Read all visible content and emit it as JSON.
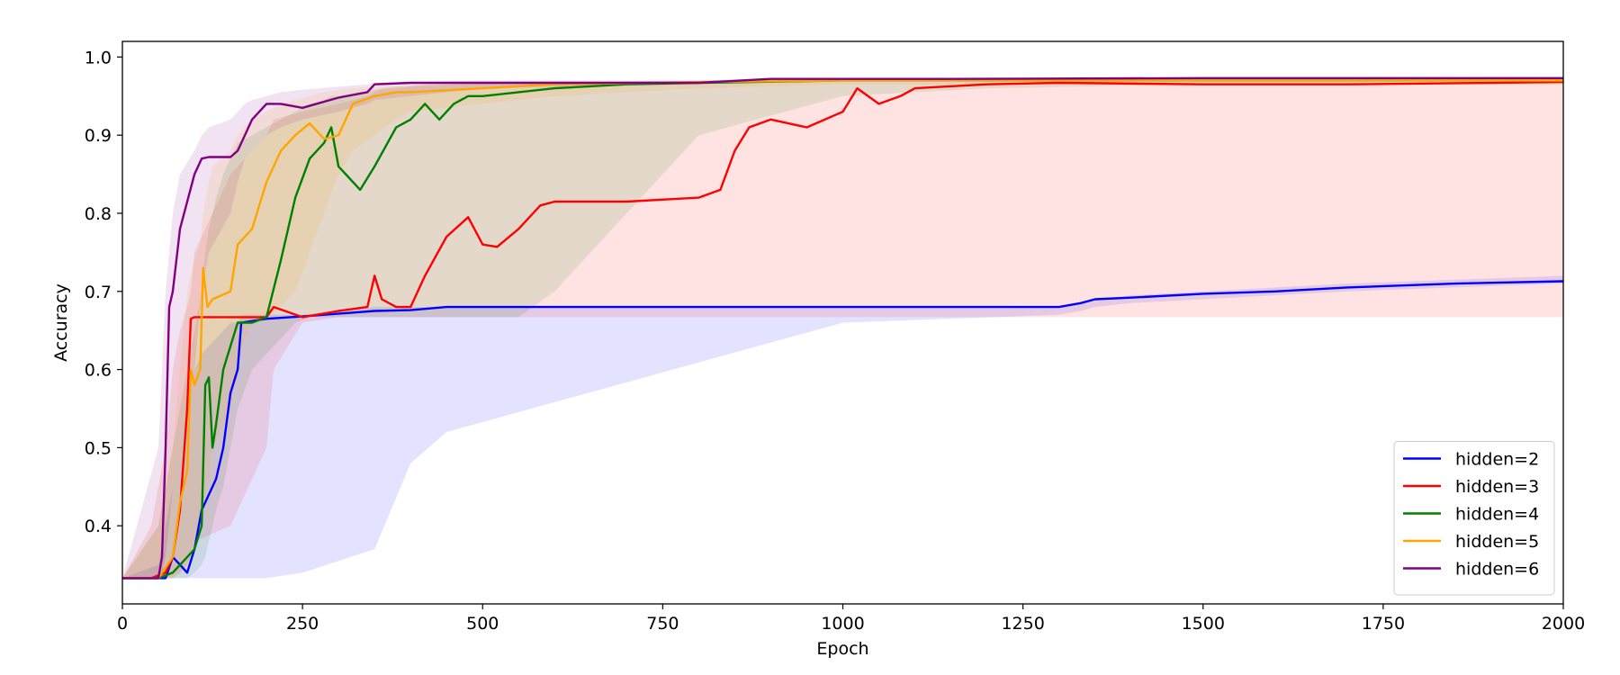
{
  "chart_data": {
    "type": "line",
    "title": "",
    "xlabel": "Epoch",
    "ylabel": "Accuracy",
    "xlim": [
      0,
      2000
    ],
    "ylim": [
      0.3,
      1.02
    ],
    "xticks": [
      0,
      250,
      500,
      750,
      1000,
      1250,
      1500,
      1750,
      2000
    ],
    "yticks": [
      0.4,
      0.5,
      0.6,
      0.7,
      0.8,
      0.9,
      1.0
    ],
    "xtick_labels": [
      "0",
      "250",
      "500",
      "750",
      "1000",
      "1250",
      "1500",
      "1750",
      "2000"
    ],
    "ytick_labels": [
      "0.4",
      "0.5",
      "0.6",
      "0.7",
      "0.8",
      "0.9",
      "1.0"
    ],
    "grid": false,
    "legend_position": "lower-right",
    "series": [
      {
        "name": "hidden=2",
        "color": "#0000ff",
        "x": [
          0,
          50,
          60,
          70,
          80,
          90,
          100,
          110,
          120,
          130,
          140,
          150,
          160,
          165,
          200,
          250,
          350,
          400,
          450,
          1000,
          1300,
          1330,
          1350,
          1400,
          1500,
          1600,
          1700,
          1850,
          2000
        ],
        "y": [
          0.333,
          0.333,
          0.333,
          0.36,
          0.35,
          0.34,
          0.37,
          0.42,
          0.44,
          0.46,
          0.5,
          0.57,
          0.6,
          0.66,
          0.665,
          0.668,
          0.675,
          0.676,
          0.68,
          0.68,
          0.68,
          0.685,
          0.69,
          0.692,
          0.697,
          0.7,
          0.705,
          0.71,
          0.713
        ],
        "band_upper": [
          0.333,
          0.35,
          0.4,
          0.45,
          0.5,
          0.55,
          0.6,
          0.62,
          0.63,
          0.64,
          0.65,
          0.66,
          0.66,
          0.67,
          0.67,
          0.67,
          0.68,
          0.68,
          0.68,
          0.68,
          0.68,
          0.685,
          0.69,
          0.695,
          0.7,
          0.705,
          0.71,
          0.715,
          0.72
        ],
        "band_lower": [
          0.333,
          0.333,
          0.333,
          0.333,
          0.333,
          0.333,
          0.333,
          0.333,
          0.333,
          0.333,
          0.333,
          0.333,
          0.333,
          0.333,
          0.333,
          0.34,
          0.37,
          0.48,
          0.52,
          0.66,
          0.67,
          0.675,
          0.68,
          0.685,
          0.69,
          0.695,
          0.7,
          0.705,
          0.71
        ]
      },
      {
        "name": "hidden=3",
        "color": "#ff0000",
        "x": [
          0,
          40,
          60,
          70,
          80,
          90,
          95,
          100,
          150,
          200,
          210,
          250,
          300,
          340,
          350,
          360,
          380,
          400,
          420,
          450,
          480,
          500,
          520,
          550,
          580,
          600,
          700,
          800,
          830,
          850,
          870,
          900,
          950,
          1000,
          1020,
          1050,
          1080,
          1100,
          1200,
          1300,
          1500,
          1700,
          2000
        ],
        "y": [
          0.333,
          0.333,
          0.34,
          0.36,
          0.42,
          0.55,
          0.665,
          0.667,
          0.667,
          0.667,
          0.68,
          0.667,
          0.675,
          0.68,
          0.72,
          0.69,
          0.68,
          0.68,
          0.72,
          0.77,
          0.795,
          0.76,
          0.757,
          0.78,
          0.81,
          0.815,
          0.815,
          0.82,
          0.83,
          0.88,
          0.91,
          0.92,
          0.91,
          0.93,
          0.96,
          0.94,
          0.95,
          0.96,
          0.965,
          0.967,
          0.965,
          0.965,
          0.968
        ],
        "band_upper": [
          0.333,
          0.4,
          0.5,
          0.6,
          0.65,
          0.68,
          0.7,
          0.75,
          0.85,
          0.9,
          0.92,
          0.93,
          0.94,
          0.95,
          0.955,
          0.96,
          0.962,
          0.963,
          0.965,
          0.966,
          0.967,
          0.967,
          0.967,
          0.967,
          0.967,
          0.967,
          0.968,
          0.968,
          0.968,
          0.968,
          0.968,
          0.968,
          0.968,
          0.968,
          0.968,
          0.968,
          0.968,
          0.968,
          0.968,
          0.968,
          0.968,
          0.968,
          0.968
        ],
        "band_lower": [
          0.333,
          0.333,
          0.333,
          0.333,
          0.34,
          0.35,
          0.36,
          0.38,
          0.4,
          0.5,
          0.6,
          0.66,
          0.667,
          0.667,
          0.667,
          0.667,
          0.667,
          0.667,
          0.667,
          0.667,
          0.667,
          0.667,
          0.667,
          0.667,
          0.667,
          0.667,
          0.667,
          0.667,
          0.667,
          0.667,
          0.667,
          0.667,
          0.667,
          0.667,
          0.667,
          0.667,
          0.667,
          0.667,
          0.667,
          0.667,
          0.667,
          0.667,
          0.667
        ]
      },
      {
        "name": "hidden=4",
        "color": "#008000",
        "x": [
          0,
          50,
          70,
          90,
          100,
          110,
          115,
          120,
          125,
          130,
          140,
          150,
          160,
          180,
          200,
          220,
          240,
          260,
          280,
          290,
          300,
          330,
          350,
          380,
          400,
          420,
          440,
          460,
          480,
          500,
          550,
          600,
          700,
          800,
          1000,
          1200,
          1500,
          2000
        ],
        "y": [
          0.333,
          0.333,
          0.34,
          0.36,
          0.37,
          0.4,
          0.58,
          0.59,
          0.5,
          0.53,
          0.6,
          0.63,
          0.66,
          0.66,
          0.667,
          0.74,
          0.82,
          0.87,
          0.89,
          0.91,
          0.86,
          0.83,
          0.86,
          0.91,
          0.92,
          0.94,
          0.92,
          0.94,
          0.95,
          0.95,
          0.955,
          0.96,
          0.965,
          0.967,
          0.97,
          0.97,
          0.97,
          0.97
        ],
        "band_upper": [
          0.333,
          0.4,
          0.5,
          0.6,
          0.65,
          0.7,
          0.75,
          0.78,
          0.8,
          0.82,
          0.85,
          0.87,
          0.89,
          0.9,
          0.91,
          0.92,
          0.93,
          0.94,
          0.945,
          0.95,
          0.95,
          0.955,
          0.958,
          0.96,
          0.962,
          0.963,
          0.964,
          0.965,
          0.966,
          0.966,
          0.967,
          0.968,
          0.969,
          0.97,
          0.97,
          0.97,
          0.97,
          0.97
        ],
        "band_lower": [
          0.333,
          0.333,
          0.333,
          0.333,
          0.34,
          0.35,
          0.36,
          0.38,
          0.4,
          0.42,
          0.45,
          0.5,
          0.55,
          0.6,
          0.62,
          0.64,
          0.66,
          0.667,
          0.667,
          0.667,
          0.667,
          0.667,
          0.667,
          0.667,
          0.667,
          0.667,
          0.667,
          0.667,
          0.667,
          0.667,
          0.667,
          0.7,
          0.8,
          0.9,
          0.95,
          0.96,
          0.965,
          0.965
        ]
      },
      {
        "name": "hidden=5",
        "color": "#ffa500",
        "x": [
          0,
          50,
          70,
          80,
          90,
          95,
          100,
          108,
          112,
          118,
          125,
          150,
          160,
          170,
          180,
          200,
          220,
          240,
          260,
          280,
          300,
          320,
          350,
          380,
          400,
          500,
          600,
          800,
          1000,
          1500,
          2000
        ],
        "y": [
          0.333,
          0.333,
          0.36,
          0.43,
          0.47,
          0.6,
          0.58,
          0.6,
          0.73,
          0.68,
          0.69,
          0.7,
          0.76,
          0.77,
          0.78,
          0.84,
          0.88,
          0.9,
          0.915,
          0.895,
          0.9,
          0.94,
          0.95,
          0.955,
          0.955,
          0.96,
          0.965,
          0.968,
          0.97,
          0.97,
          0.97
        ],
        "band_upper": [
          0.333,
          0.4,
          0.5,
          0.6,
          0.7,
          0.72,
          0.74,
          0.76,
          0.8,
          0.83,
          0.86,
          0.88,
          0.9,
          0.91,
          0.92,
          0.93,
          0.94,
          0.945,
          0.95,
          0.955,
          0.958,
          0.96,
          0.962,
          0.963,
          0.964,
          0.966,
          0.967,
          0.968,
          0.97,
          0.97,
          0.97
        ],
        "band_lower": [
          0.333,
          0.333,
          0.333,
          0.34,
          0.35,
          0.36,
          0.38,
          0.4,
          0.42,
          0.45,
          0.5,
          0.55,
          0.6,
          0.64,
          0.66,
          0.667,
          0.68,
          0.7,
          0.75,
          0.8,
          0.85,
          0.88,
          0.9,
          0.92,
          0.93,
          0.94,
          0.95,
          0.96,
          0.965,
          0.965,
          0.965
        ]
      },
      {
        "name": "hidden=6",
        "color": "#800080",
        "x": [
          0,
          50,
          55,
          60,
          65,
          70,
          80,
          100,
          110,
          120,
          150,
          160,
          170,
          180,
          200,
          220,
          250,
          300,
          340,
          350,
          400,
          500,
          800,
          900,
          1000,
          1150,
          1500,
          2000
        ],
        "y": [
          0.333,
          0.333,
          0.36,
          0.5,
          0.68,
          0.7,
          0.78,
          0.85,
          0.87,
          0.872,
          0.872,
          0.88,
          0.9,
          0.92,
          0.94,
          0.94,
          0.935,
          0.948,
          0.955,
          0.965,
          0.967,
          0.967,
          0.967,
          0.972,
          0.972,
          0.972,
          0.973,
          0.973
        ],
        "band_upper": [
          0.333,
          0.5,
          0.6,
          0.7,
          0.75,
          0.8,
          0.85,
          0.88,
          0.9,
          0.91,
          0.92,
          0.93,
          0.94,
          0.945,
          0.95,
          0.955,
          0.958,
          0.962,
          0.965,
          0.967,
          0.968,
          0.97,
          0.97,
          0.972,
          0.972,
          0.973,
          0.973,
          0.973
        ],
        "band_lower": [
          0.333,
          0.333,
          0.34,
          0.36,
          0.4,
          0.45,
          0.5,
          0.6,
          0.7,
          0.75,
          0.8,
          0.84,
          0.87,
          0.88,
          0.9,
          0.91,
          0.92,
          0.93,
          0.94,
          0.945,
          0.95,
          0.96,
          0.965,
          0.968,
          0.97,
          0.97,
          0.97,
          0.97
        ]
      }
    ]
  }
}
